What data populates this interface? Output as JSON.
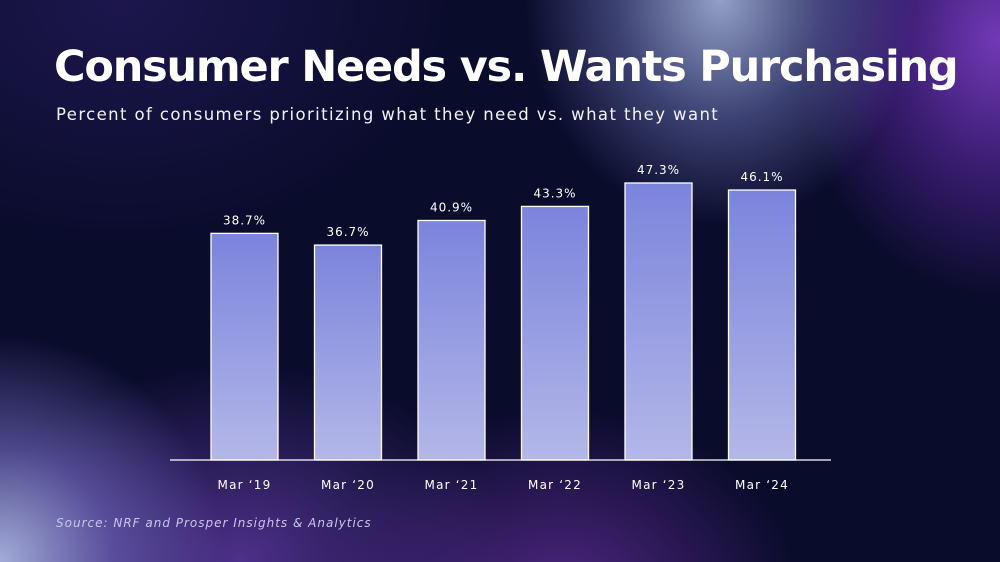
{
  "header": {
    "title": "Consumer Needs vs. Wants Purchasing",
    "subtitle": "Percent of consumers prioritizing what they need vs. what they want"
  },
  "footer": {
    "source": "Source: NRF and Prosper Insights & Analytics"
  },
  "colors": {
    "bar_top": "#7b84dc",
    "bar_bottom": "#b3b7e8",
    "bar_stroke": "#ffffff",
    "axis": "#ffffff"
  },
  "chart_data": {
    "type": "bar",
    "title": "Consumer Needs vs. Wants Purchasing",
    "subtitle": "Percent of consumers prioritizing what they need vs. what they want",
    "xlabel": "",
    "ylabel": "",
    "categories": [
      "Mar ‘19",
      "Mar ‘20",
      "Mar ‘21",
      "Mar ‘22",
      "Mar ‘23",
      "Mar ‘24"
    ],
    "values": [
      38.7,
      36.7,
      40.9,
      43.3,
      47.3,
      46.1
    ],
    "value_labels": [
      "38.7%",
      "36.7%",
      "40.9%",
      "43.3%",
      "47.3%",
      "46.1%"
    ],
    "unit": "%",
    "ylim": [
      0,
      47.3
    ],
    "grid": false,
    "legend": "none"
  }
}
